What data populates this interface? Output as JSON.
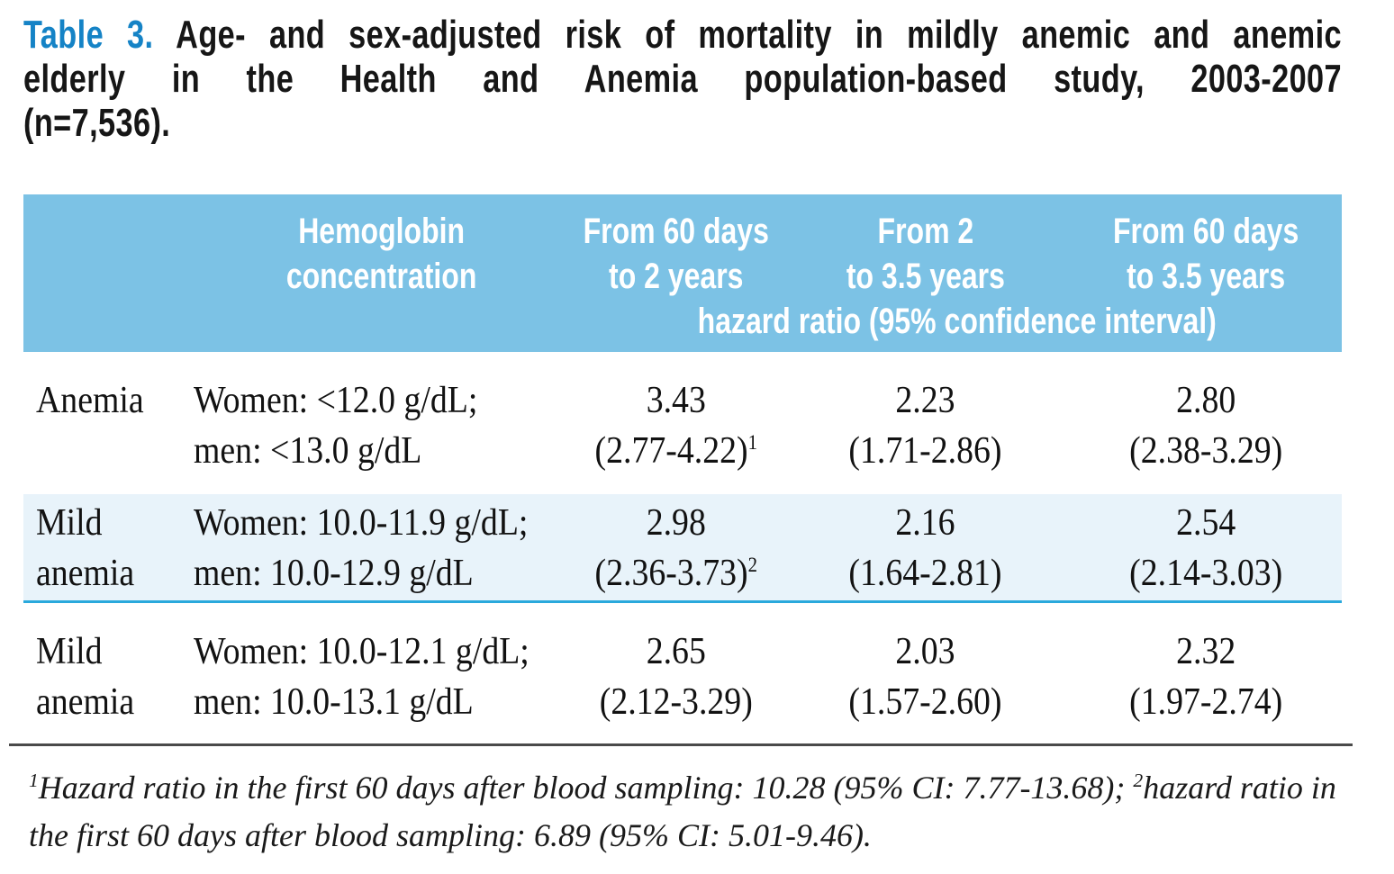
{
  "title": {
    "label": "Table 3.",
    "line1_rest": "Age- and sex-adjusted risk of mortality in mildly anemic and anemic",
    "line2": "elderly in the Health and Anemia population-based study, 2003-2007",
    "line3": "(n=7,536)."
  },
  "colors": {
    "accent_blue": "#1583c6",
    "header_bg": "#7cc2e5",
    "header_text": "#ffffff",
    "highlight_row_bg": "#e8f3fa",
    "highlight_row_divider": "#2aa9dc"
  },
  "table": {
    "columns": [
      {
        "label_line1": "",
        "label_line2": ""
      },
      {
        "label_line1": "Hemoglobin",
        "label_line2": "concentration"
      },
      {
        "label_line1": "From 60 days",
        "label_line2": "to 2 years"
      },
      {
        "label_line1": "From 2",
        "label_line2": "to 3.5 years"
      },
      {
        "label_line1": "From 60 days",
        "label_line2": "to 3.5 years"
      }
    ],
    "subheader": "hazard ratio (95% confidence interval)",
    "rows": [
      {
        "category": "Anemia",
        "hemoglobin_line1": "Women: <12.0 g/dL;",
        "hemoglobin_line2": "men: <13.0 g/dL",
        "cells": [
          {
            "value": "3.43",
            "ci": "(2.77-4.22)",
            "sup": "1"
          },
          {
            "value": "2.23",
            "ci": "(1.71-2.86)",
            "sup": ""
          },
          {
            "value": "2.80",
            "ci": "(2.38-3.29)",
            "sup": ""
          }
        ]
      },
      {
        "category": "Mild anemia",
        "hemoglobin_line1": "Women: 10.0-11.9 g/dL;",
        "hemoglobin_line2": "men: 10.0-12.9 g/dL",
        "cells": [
          {
            "value": "2.98",
            "ci": "(2.36-3.73)",
            "sup": "2"
          },
          {
            "value": "2.16",
            "ci": "(1.64-2.81)",
            "sup": ""
          },
          {
            "value": "2.54",
            "ci": "(2.14-3.03)",
            "sup": ""
          }
        ]
      },
      {
        "category": "Mild anemia",
        "hemoglobin_line1": "Women: 10.0-12.1 g/dL;",
        "hemoglobin_line2": "men: 10.0-13.1 g/dL",
        "cells": [
          {
            "value": "2.65",
            "ci": "(2.12-3.29)",
            "sup": ""
          },
          {
            "value": "2.03",
            "ci": "(1.57-2.60)",
            "sup": ""
          },
          {
            "value": "2.32",
            "ci": "(1.97-2.74)",
            "sup": ""
          }
        ]
      }
    ]
  },
  "footnote": {
    "sup1": "1",
    "part1": "Hazard ratio in the first 60 days after blood sampling: 10.28 (95% CI: 7.77-13.68); ",
    "sup2": "2",
    "part2": "hazard ratio in the first 60 days after blood sampling: 6.89 (95% CI: 5.01-9.46)."
  }
}
